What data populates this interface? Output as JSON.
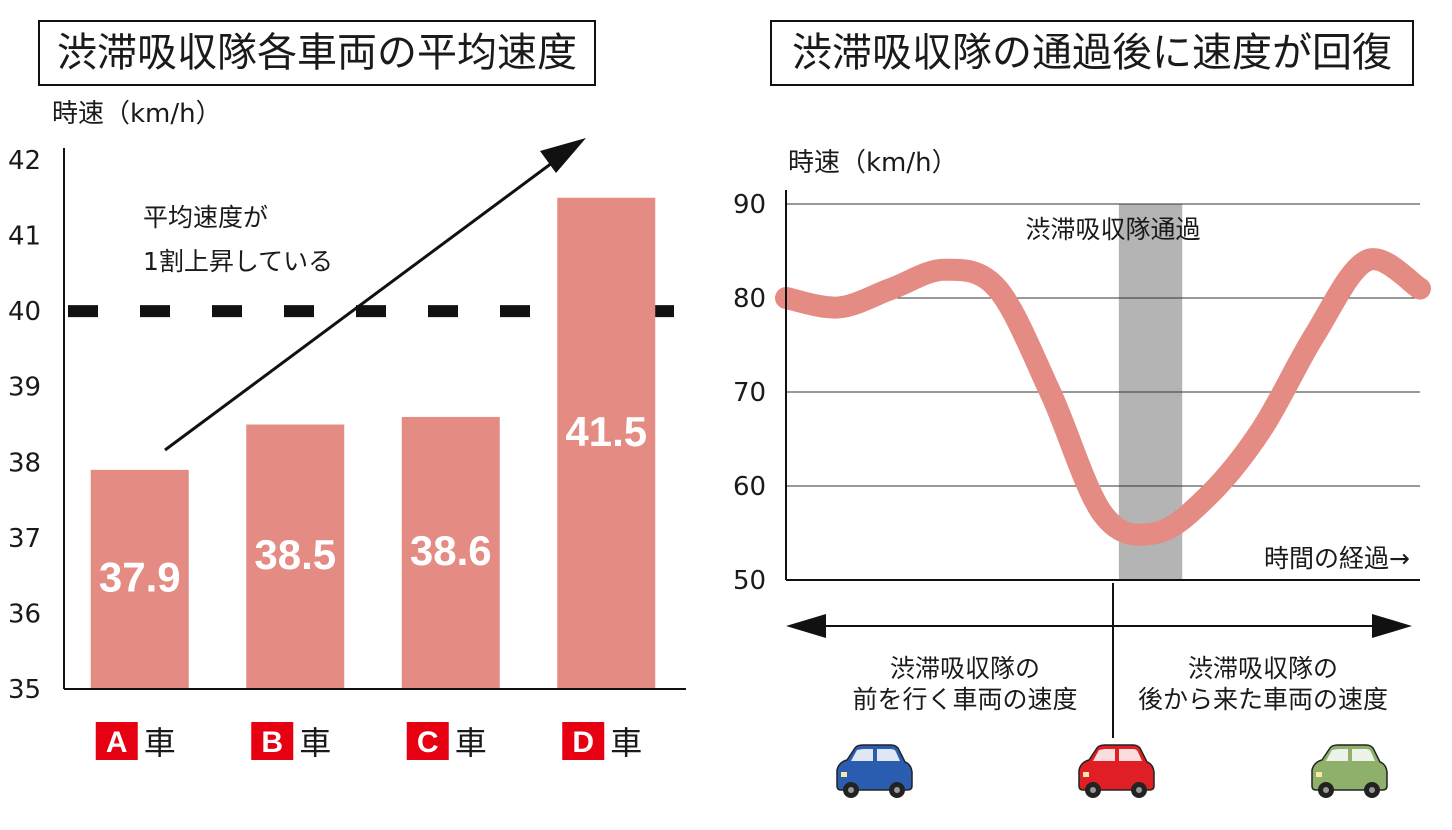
{
  "titles": {
    "left": "渋滞吸収隊各車両の平均速度",
    "right": "渋滞吸収隊の通過後に速度が回復"
  },
  "colors": {
    "bar": "#e48b84",
    "curve": "#e48b84",
    "badge": "#e60012",
    "band": "#b4b4b4",
    "car_blue": "#2a5db0",
    "car_red": "#e01e25",
    "car_green": "#8fb06a"
  },
  "chart_data": [
    {
      "type": "bar",
      "title": "渋滞吸収隊各車両の平均速度",
      "ylabel": "時速（km/h）",
      "ylim": [
        35,
        42
      ],
      "yticks": [
        35,
        36,
        37,
        38,
        39,
        40,
        41,
        42
      ],
      "categories": [
        "A",
        "B",
        "C",
        "D"
      ],
      "category_suffix": "車",
      "values": [
        37.9,
        38.5,
        38.6,
        41.5
      ],
      "value_labels": [
        "37.9",
        "38.5",
        "38.6",
        "41.5"
      ],
      "reference_line": {
        "value": 40,
        "style": "dashed"
      },
      "annotation": {
        "lines": [
          "平均速度が",
          "1割上昇している"
        ]
      }
    },
    {
      "type": "line",
      "title": "渋滞吸収隊の通過後に速度が回復",
      "ylabel": "時速（km/h）",
      "ylim": [
        50,
        90
      ],
      "yticks": [
        50,
        60,
        70,
        80,
        90
      ],
      "grid": true,
      "xlabel": "時間の経過→",
      "series": [
        {
          "values": [
            80,
            79,
            81,
            83,
            81,
            70,
            57,
            55,
            59,
            66,
            76,
            84,
            81
          ]
        }
      ],
      "band": {
        "label": "渋滞吸収隊通過",
        "x_start": 6.3,
        "x_end": 7.5
      },
      "regions": {
        "before": [
          "渋滞吸収隊の",
          "前を行く車両の速度"
        ],
        "after": [
          "渋滞吸収隊の",
          "後から来た車両の速度"
        ]
      }
    }
  ]
}
